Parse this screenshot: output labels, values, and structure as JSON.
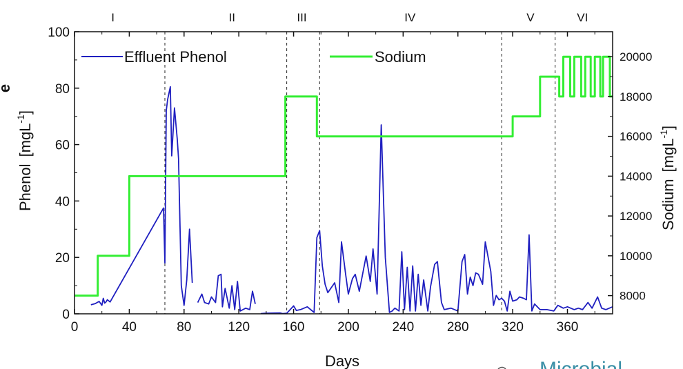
{
  "chart_data": {
    "type": "line",
    "xlabel": "Days",
    "ylabel": "Phenol",
    "ylabel_unit": "[mgL",
    "ylabel_exp": "-1",
    "ylabel_close": "]",
    "y2label": "Sodium",
    "y2label_unit": "[mgL",
    "y2label_exp": "-1",
    "y2label_close": "]",
    "xlim": [
      0,
      393
    ],
    "ylim": [
      0,
      100
    ],
    "y2lim": [
      7086,
      21254
    ],
    "xticks": [
      "0",
      "40",
      "80",
      "120",
      "160",
      "200",
      "240",
      "280",
      "320",
      "360"
    ],
    "xtick_values": [
      0,
      40,
      80,
      120,
      160,
      200,
      240,
      280,
      320,
      360
    ],
    "yticks": [
      "0",
      "20",
      "40",
      "60",
      "80",
      "100"
    ],
    "ytick_values": [
      0,
      20,
      40,
      60,
      80,
      100
    ],
    "y2ticks": [
      "8000",
      "10000",
      "12000",
      "14000",
      "16000",
      "18000",
      "20000"
    ],
    "y2tick_values": [
      8000,
      10000,
      12000,
      14000,
      16000,
      18000,
      20000
    ],
    "phases": [
      {
        "label": "I",
        "center": 28
      },
      {
        "label": "II",
        "center": 115
      },
      {
        "label": "III",
        "center": 166
      },
      {
        "label": "IV",
        "center": 245
      },
      {
        "label": "V",
        "center": 333
      },
      {
        "label": "VI",
        "center": 371
      }
    ],
    "phase_boundaries": [
      66,
      155,
      179,
      312,
      351
    ],
    "legend_position": "top",
    "series": [
      {
        "name": "Effluent Phenol",
        "axis": "left",
        "color": "#1f1fc0",
        "x": [
          12,
          15,
          18,
          20,
          21,
          22,
          23,
          24,
          26,
          65,
          66,
          67,
          68,
          70,
          71,
          73,
          75,
          76,
          78,
          80,
          82,
          84,
          86,
          88,
          90,
          93,
          95,
          98,
          100,
          103,
          105,
          107,
          108,
          110,
          113,
          115,
          117,
          119,
          121,
          123,
          125,
          128,
          130,
          132,
          134,
          136,
          140,
          150,
          152,
          155,
          160,
          162,
          165,
          170,
          175,
          177,
          179,
          181,
          183,
          185,
          190,
          193,
          195,
          198,
          200,
          203,
          205,
          208,
          213,
          216,
          218,
          221,
          224,
          227,
          230,
          232,
          234,
          237,
          239,
          241,
          243,
          245,
          247,
          249,
          251,
          253,
          255,
          258,
          260,
          263,
          265,
          268,
          270,
          275,
          280,
          283,
          285,
          287,
          289,
          291,
          293,
          295,
          298,
          300,
          304,
          306,
          308,
          310,
          312,
          314,
          316,
          318,
          320,
          323,
          325,
          328,
          330,
          332,
          334,
          336,
          340,
          345,
          350,
          353,
          357,
          360,
          365,
          368,
          371,
          375,
          378,
          382,
          385,
          388,
          393
        ],
        "values": [
          3.2,
          3.6,
          4.4,
          3.0,
          5.5,
          3.8,
          4.2,
          5.0,
          4.2,
          37.5,
          18.0,
          72.0,
          76.0,
          80.5,
          56.0,
          73.0,
          62.0,
          55.0,
          10.0,
          3.0,
          12.0,
          30.0,
          11.0,
          null,
          4.0,
          7.0,
          4.0,
          3.5,
          6.0,
          4.0,
          13.5,
          14.0,
          2.5,
          9.0,
          2.0,
          10.0,
          1.5,
          11.5,
          1.0,
          1.5,
          2.0,
          1.5,
          8.0,
          3.5,
          null,
          0.1,
          0.2,
          0.3,
          0.1,
          0.2,
          2.8,
          1.2,
          1.5,
          2.5,
          0.5,
          27.0,
          29.5,
          17.0,
          10.5,
          7.5,
          11.0,
          4.0,
          25.5,
          14.0,
          7.0,
          12.5,
          14.0,
          8.0,
          20.5,
          11.5,
          23.0,
          7.0,
          67.0,
          20.0,
          0.5,
          1.0,
          2.0,
          1.0,
          22.0,
          1.5,
          16.5,
          1.0,
          17.0,
          1.0,
          14.0,
          3.0,
          12.0,
          1.0,
          9.5,
          17.5,
          18.5,
          4.0,
          1.5,
          2.0,
          1.0,
          18.5,
          21.0,
          7.0,
          13.0,
          10.0,
          14.5,
          14.0,
          10.5,
          25.5,
          15.0,
          3.0,
          6.5,
          5.0,
          5.5,
          4.5,
          1.0,
          8.0,
          4.5,
          5.0,
          6.0,
          5.5,
          5.0,
          28.0,
          1.0,
          3.5,
          1.5,
          1.5,
          1.0,
          3.0,
          2.0,
          2.5,
          1.5,
          2.0,
          1.5,
          4.0,
          2.0,
          6.0,
          2.0,
          1.5,
          2.5
        ]
      },
      {
        "name": "Sodium",
        "axis": "right",
        "color": "#33ee33",
        "x": [
          0,
          17,
          17,
          40,
          40,
          154,
          154,
          177,
          177,
          320,
          320,
          340,
          340,
          354,
          354,
          357,
          357,
          362,
          362,
          365,
          365,
          370,
          370,
          373,
          373,
          377,
          377,
          380,
          380,
          384,
          384,
          386,
          386,
          391,
          391,
          393
        ],
        "values": [
          8000,
          8000,
          10000,
          10000,
          14000,
          14000,
          18000,
          18000,
          16000,
          16000,
          17000,
          17000,
          19000,
          19000,
          18000,
          18000,
          20000,
          20000,
          18000,
          18000,
          20000,
          20000,
          18000,
          18000,
          20000,
          20000,
          18000,
          18000,
          20000,
          20000,
          18000,
          18000,
          20000,
          20000,
          18000,
          18000
        ]
      }
    ]
  },
  "partial_texts": {
    "left_edge_fragment": "e",
    "watermark": "Microbial"
  }
}
